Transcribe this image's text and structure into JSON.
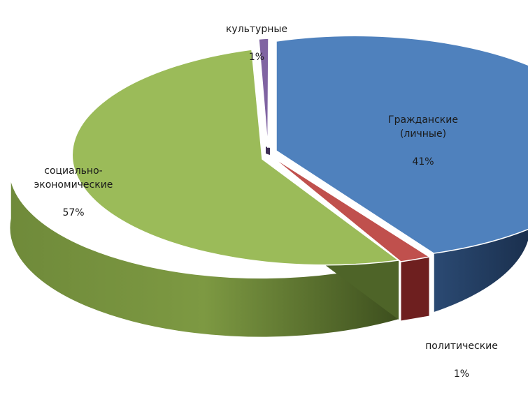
{
  "chart_data": {
    "type": "pie",
    "style": "3d-exploded",
    "slices": [
      {
        "label": "Гражданские\n(личные)",
        "value": 41,
        "display": "41%",
        "color": "#4f81bd"
      },
      {
        "label": "политические",
        "value": 1,
        "display": "1%",
        "color": "#c0504d"
      },
      {
        "label": "социально-\nэкономические",
        "value": 57,
        "display": "57%",
        "color": "#9bbb59"
      },
      {
        "label": "культурные",
        "value": 1,
        "display": "1%",
        "color": "#8064a2"
      }
    ]
  }
}
